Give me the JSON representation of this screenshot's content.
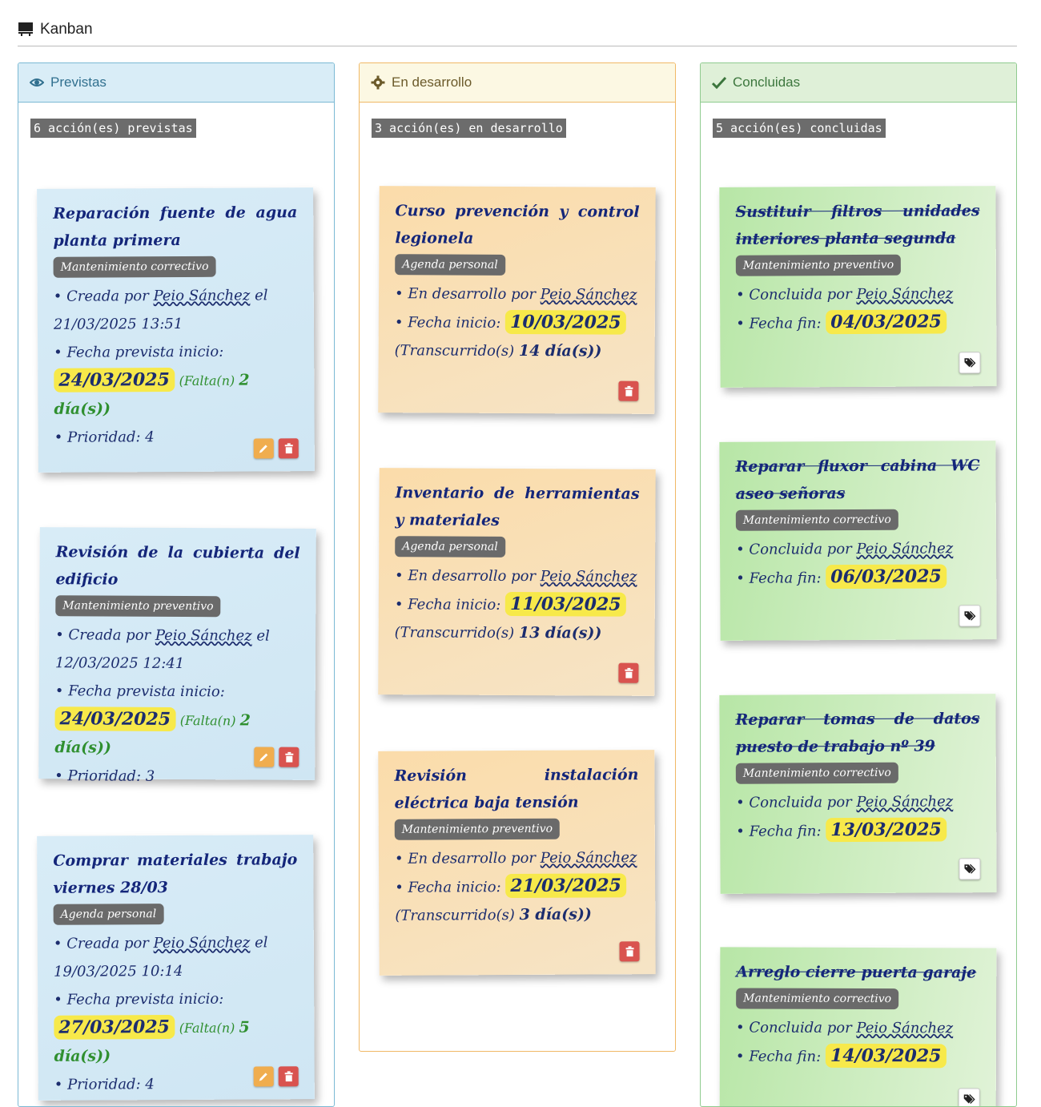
{
  "page": {
    "title": "Kanban"
  },
  "colors": {
    "blue": "#d9edf7",
    "orange": "#fcf8e3",
    "green": "#dff0d8",
    "date_highlight": "#f7e94a",
    "delete": "#d9534f",
    "edit": "#f0ad4e"
  },
  "columns": [
    {
      "title": "Previstas",
      "icon": "eye-icon",
      "count": "6 acción(es) previstas",
      "cards": [
        {
          "title": "Reparación fuente de agua planta primera",
          "tag": "Mantenimiento correctivo",
          "created_prefix": "Creada por",
          "user": "Peio Sánchez",
          "created_suffix": "el",
          "created_date": "21/03/2025 13:51",
          "planned_label": "Fecha prevista inicio:",
          "planned_date": "24/03/2025",
          "remaining_prefix": "(Falta(n)",
          "remaining": "2 día(s))",
          "priority": "Prioridad: 4"
        },
        {
          "title": "Revisión de la cubierta del edificio",
          "tag": "Mantenimiento preventivo",
          "created_prefix": "Creada por",
          "user": "Peio Sánchez",
          "created_suffix": "el",
          "created_date": "12/03/2025 12:41",
          "planned_label": "Fecha prevista inicio:",
          "planned_date": "24/03/2025",
          "remaining_prefix": "(Falta(n)",
          "remaining": "2 día(s))",
          "priority": "Prioridad: 3"
        },
        {
          "title": "Comprar materiales trabajo viernes 28/03",
          "tag": "Agenda personal",
          "created_prefix": "Creada por",
          "user": "Peio Sánchez",
          "created_suffix": "el",
          "created_date": "19/03/2025 10:14",
          "planned_label": "Fecha prevista inicio:",
          "planned_date": "27/03/2025",
          "remaining_prefix": "(Falta(n)",
          "remaining": "5 día(s))",
          "priority": "Prioridad: 4"
        }
      ]
    },
    {
      "title": "En desarrollo",
      "icon": "gear-icon",
      "count": "3 acción(es) en desarrollo",
      "cards": [
        {
          "title": "Curso prevención y control legionela",
          "tag": "Agenda personal",
          "dev_prefix": "En desarrollo por",
          "user": "Peio Sánchez",
          "start_label": "Fecha inicio:",
          "start_date": "10/03/2025",
          "elapsed_prefix": "(Transcurrido(s)",
          "elapsed": "14 día(s))"
        },
        {
          "title": "Inventario de herramientas y materiales",
          "tag": "Agenda personal",
          "dev_prefix": "En desarrollo por",
          "user": "Peio Sánchez",
          "start_label": "Fecha inicio:",
          "start_date": "11/03/2025",
          "elapsed_prefix": "(Transcurrido(s)",
          "elapsed": "13 día(s))"
        },
        {
          "title": "Revisión instalación eléctrica baja tensión",
          "tag": "Mantenimiento preventivo",
          "dev_prefix": "En desarrollo por",
          "user": "Peio Sánchez",
          "start_label": "Fecha inicio:",
          "start_date": "21/03/2025",
          "elapsed_prefix": "(Transcurrido(s)",
          "elapsed": "3 día(s))"
        }
      ]
    },
    {
      "title": "Concluidas",
      "icon": "check-icon",
      "count": "5 acción(es) concluidas",
      "cards": [
        {
          "title": "Sustituir filtros unidades interiores planta segunda",
          "tag": "Mantenimiento preventivo",
          "done_prefix": "Concluida por",
          "user": "Peio Sánchez",
          "end_label": "Fecha fin:",
          "end_date": "04/03/2025"
        },
        {
          "title": "Reparar fluxor cabina WC aseo señoras",
          "tag": "Mantenimiento correctivo",
          "done_prefix": "Concluida por",
          "user": "Peio Sánchez",
          "end_label": "Fecha fin:",
          "end_date": "06/03/2025"
        },
        {
          "title": "Reparar tomas de datos puesto de trabajo nº 39",
          "tag": "Mantenimiento correctivo",
          "done_prefix": "Concluida por",
          "user": "Peio Sánchez",
          "end_label": "Fecha fin:",
          "end_date": "13/03/2025"
        },
        {
          "title": "Arreglo cierre puerta garaje",
          "tag": "Mantenimiento correctivo",
          "done_prefix": "Concluida por",
          "user": "Peio Sánchez",
          "end_label": "Fecha fin:",
          "end_date": "14/03/2025"
        }
      ]
    }
  ]
}
